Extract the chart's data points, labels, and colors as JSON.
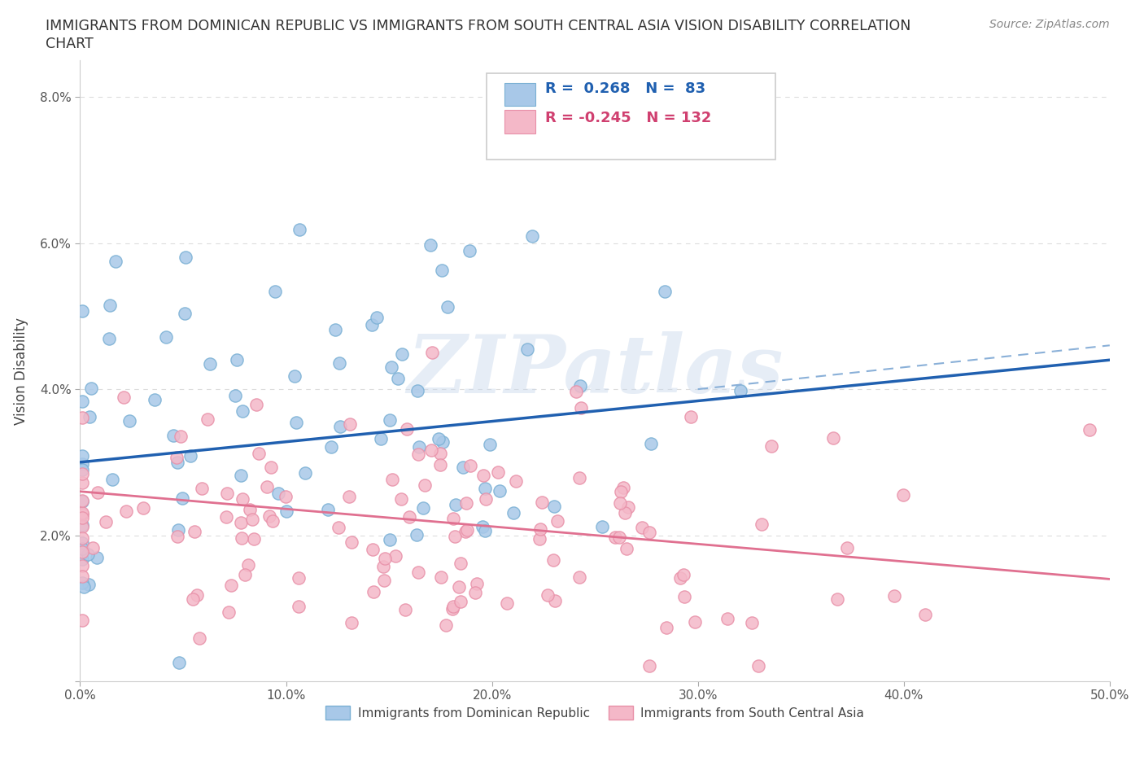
{
  "title_line1": "IMMIGRANTS FROM DOMINICAN REPUBLIC VS IMMIGRANTS FROM SOUTH CENTRAL ASIA VISION DISABILITY CORRELATION",
  "title_line2": "CHART",
  "source": "Source: ZipAtlas.com",
  "ylabel": "Vision Disability",
  "xmin": 0.0,
  "xmax": 0.5,
  "ymin": 0.0,
  "ymax": 0.085,
  "yticks": [
    0.0,
    0.02,
    0.04,
    0.06,
    0.08
  ],
  "ytick_labels": [
    "",
    "2.0%",
    "4.0%",
    "6.0%",
    "8.0%"
  ],
  "xtick_labels": [
    "0.0%",
    "10.0%",
    "20.0%",
    "30.0%",
    "40.0%",
    "50.0%"
  ],
  "blue_color": "#a8c8e8",
  "blue_edge_color": "#7ab0d4",
  "pink_color": "#f4b8c8",
  "pink_edge_color": "#e890a8",
  "blue_line_color": "#2060b0",
  "pink_line_color": "#e07090",
  "dashed_line_color": "#8ab0d8",
  "R_blue": 0.268,
  "N_blue": 83,
  "R_pink": -0.245,
  "N_pink": 132,
  "legend_label_blue": "Immigrants from Dominican Republic",
  "legend_label_pink": "Immigrants from South Central Asia",
  "watermark": "ZIPatlas",
  "background_color": "#ffffff",
  "grid_color": "#dddddd",
  "blue_line_start_y": 0.03,
  "blue_line_end_y": 0.044,
  "pink_line_start_y": 0.026,
  "pink_line_end_y": 0.014,
  "dashed_line_start_x": 0.3,
  "dashed_line_start_y": 0.04,
  "dashed_line_end_x": 0.5,
  "dashed_line_end_y": 0.046
}
